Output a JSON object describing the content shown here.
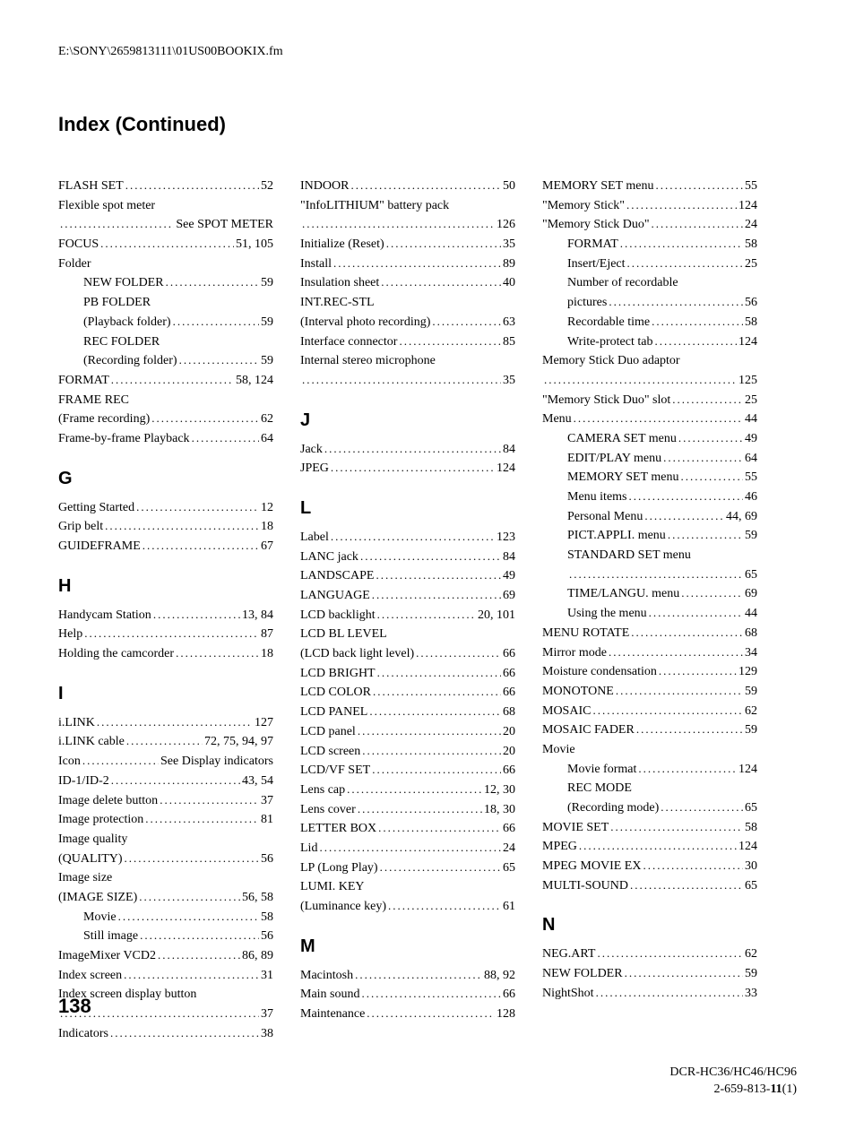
{
  "file_path": "E:\\SONY\\2659813111\\01US00BOOKIX.fm",
  "title": "Index (Continued)",
  "page_number": "138",
  "footer_line1": "DCR-HC36/HC46/HC96",
  "footer_line2_a": "2-659-813-",
  "footer_line2_b": "11",
  "footer_line2_c": "(1)",
  "columns": [
    {
      "entries": [
        {
          "t": "e",
          "label": "FLASH SET",
          "pages": "52"
        },
        {
          "t": "w",
          "line1": "Flexible spot meter",
          "label": "",
          "pages": "See SPOT METER"
        },
        {
          "t": "e",
          "label": "FOCUS",
          "pages": "51, 105"
        },
        {
          "t": "p",
          "label": "Folder"
        },
        {
          "t": "s",
          "label": "NEW FOLDER",
          "pages": "59"
        },
        {
          "t": "sw",
          "line1": "PB FOLDER",
          "label": "(Playback folder)",
          "pages": "59"
        },
        {
          "t": "sw",
          "line1": "REC FOLDER",
          "label": "(Recording folder)",
          "pages": "59"
        },
        {
          "t": "e",
          "label": "FORMAT",
          "pages": "58, 124"
        },
        {
          "t": "w",
          "line1": "FRAME REC",
          "label": "(Frame recording)",
          "pages": "62"
        },
        {
          "t": "e",
          "label": "Frame-by-frame Playback",
          "pages": "64"
        },
        {
          "t": "h",
          "label": "G"
        },
        {
          "t": "e",
          "label": "Getting Started",
          "pages": "12"
        },
        {
          "t": "e",
          "label": "Grip belt",
          "pages": "18"
        },
        {
          "t": "e",
          "label": "GUIDEFRAME",
          "pages": "67"
        },
        {
          "t": "h",
          "label": "H"
        },
        {
          "t": "e",
          "label": "Handycam Station",
          "pages": "13, 84"
        },
        {
          "t": "e",
          "label": "Help",
          "pages": "87"
        },
        {
          "t": "e",
          "label": "Holding the camcorder",
          "pages": "18"
        },
        {
          "t": "h",
          "label": "I"
        },
        {
          "t": "e",
          "label": "i.LINK",
          "pages": "127"
        },
        {
          "t": "e",
          "label": "i.LINK cable",
          "pages": "72, 75, 94, 97"
        },
        {
          "t": "e",
          "label": "Icon",
          "pages": "See Display indicators"
        },
        {
          "t": "e",
          "label": "ID-1/ID-2",
          "pages": "43, 54"
        },
        {
          "t": "e",
          "label": "Image delete button",
          "pages": "37"
        },
        {
          "t": "e",
          "label": "Image protection",
          "pages": "81"
        },
        {
          "t": "w",
          "line1": "Image quality",
          "label": "(QUALITY)",
          "pages": "56"
        },
        {
          "t": "w",
          "line1": "Image size",
          "label": "(IMAGE SIZE)",
          "pages": "56, 58"
        },
        {
          "t": "s",
          "label": "Movie",
          "pages": "58"
        },
        {
          "t": "s",
          "label": "Still image",
          "pages": "56"
        },
        {
          "t": "e",
          "label": "ImageMixer VCD2",
          "pages": "86, 89"
        },
        {
          "t": "e",
          "label": "Index screen",
          "pages": "31"
        },
        {
          "t": "w",
          "line1": "Index screen display button",
          "label": "",
          "pages": "37"
        },
        {
          "t": "e",
          "label": "Indicators",
          "pages": "38"
        }
      ]
    },
    {
      "entries": [
        {
          "t": "e",
          "label": "INDOOR",
          "pages": "50"
        },
        {
          "t": "w",
          "line1": "\"InfoLITHIUM\" battery pack",
          "label": "",
          "pages": "126"
        },
        {
          "t": "e",
          "label": "Initialize (Reset)",
          "pages": "35"
        },
        {
          "t": "e",
          "label": "Install",
          "pages": "89"
        },
        {
          "t": "e",
          "label": "Insulation sheet",
          "pages": "40"
        },
        {
          "t": "w",
          "line1": "INT.REC-STL",
          "label": "(Interval photo recording)",
          "pages": "63"
        },
        {
          "t": "e",
          "label": "Interface connector",
          "pages": "85"
        },
        {
          "t": "w",
          "line1": "Internal stereo microphone",
          "label": "",
          "pages": "35"
        },
        {
          "t": "h",
          "label": "J"
        },
        {
          "t": "e",
          "label": "Jack",
          "pages": "84"
        },
        {
          "t": "e",
          "label": "JPEG",
          "pages": "124"
        },
        {
          "t": "h",
          "label": "L"
        },
        {
          "t": "e",
          "label": "Label",
          "pages": "123"
        },
        {
          "t": "e",
          "label": "LANC jack",
          "pages": "84"
        },
        {
          "t": "e",
          "label": "LANDSCAPE",
          "pages": "49"
        },
        {
          "t": "e",
          "label": "LANGUAGE",
          "pages": "69"
        },
        {
          "t": "e",
          "label": "LCD backlight",
          "pages": "20, 101"
        },
        {
          "t": "w",
          "line1": "LCD BL LEVEL",
          "label": "(LCD back light level)",
          "pages": "66"
        },
        {
          "t": "e",
          "label": "LCD BRIGHT",
          "pages": "66"
        },
        {
          "t": "e",
          "label": "LCD COLOR",
          "pages": "66"
        },
        {
          "t": "e",
          "label": "LCD PANEL",
          "pages": "68"
        },
        {
          "t": "e",
          "label": "LCD panel",
          "pages": "20"
        },
        {
          "t": "e",
          "label": "LCD screen",
          "pages": "20"
        },
        {
          "t": "e",
          "label": "LCD/VF SET",
          "pages": "66"
        },
        {
          "t": "e",
          "label": "Lens cap",
          "pages": "12, 30"
        },
        {
          "t": "e",
          "label": "Lens cover",
          "pages": "18, 30"
        },
        {
          "t": "e",
          "label": "LETTER BOX",
          "pages": "66"
        },
        {
          "t": "e",
          "label": "Lid",
          "pages": "24"
        },
        {
          "t": "e",
          "label": "LP (Long Play)",
          "pages": "65"
        },
        {
          "t": "w",
          "line1": "LUMI. KEY",
          "label": "(Luminance key)",
          "pages": "61"
        },
        {
          "t": "h",
          "label": "M"
        },
        {
          "t": "e",
          "label": "Macintosh",
          "pages": "88, 92"
        },
        {
          "t": "e",
          "label": "Main sound",
          "pages": "66"
        },
        {
          "t": "e",
          "label": "Maintenance",
          "pages": "128"
        }
      ]
    },
    {
      "entries": [
        {
          "t": "e",
          "label": "MEMORY SET menu",
          "pages": "55"
        },
        {
          "t": "e",
          "label": "\"Memory Stick\"",
          "pages": "124"
        },
        {
          "t": "e",
          "label": "\"Memory Stick Duo\"",
          "pages": "24"
        },
        {
          "t": "s",
          "label": "FORMAT",
          "pages": "58"
        },
        {
          "t": "s",
          "label": "Insert/Eject",
          "pages": "25"
        },
        {
          "t": "sw",
          "line1": "Number of recordable",
          "label": "pictures",
          "pages": "56"
        },
        {
          "t": "s",
          "label": "Recordable time",
          "pages": "58"
        },
        {
          "t": "s",
          "label": "Write-protect tab",
          "pages": "124"
        },
        {
          "t": "w",
          "line1": "Memory Stick Duo adaptor",
          "label": "",
          "pages": "125"
        },
        {
          "t": "e",
          "label": "\"Memory Stick Duo\" slot",
          "pages": "25"
        },
        {
          "t": "e",
          "label": "Menu",
          "pages": "44"
        },
        {
          "t": "s",
          "label": "CAMERA SET menu",
          "pages": "49"
        },
        {
          "t": "s",
          "label": "EDIT/PLAY menu",
          "pages": "64"
        },
        {
          "t": "s",
          "label": "MEMORY SET menu",
          "pages": "55"
        },
        {
          "t": "s",
          "label": "Menu items",
          "pages": "46"
        },
        {
          "t": "s",
          "label": "Personal Menu",
          "pages": "44, 69"
        },
        {
          "t": "s",
          "label": "PICT.APPLI. menu",
          "pages": "59"
        },
        {
          "t": "sw",
          "line1": "STANDARD SET menu",
          "label": "",
          "pages": "65"
        },
        {
          "t": "s",
          "label": "TIME/LANGU. menu",
          "pages": "69"
        },
        {
          "t": "s",
          "label": "Using the menu",
          "pages": "44"
        },
        {
          "t": "e",
          "label": "MENU ROTATE",
          "pages": "68"
        },
        {
          "t": "e",
          "label": "Mirror mode",
          "pages": "34"
        },
        {
          "t": "e",
          "label": "Moisture condensation",
          "pages": "129"
        },
        {
          "t": "e",
          "label": "MONOTONE",
          "pages": "59"
        },
        {
          "t": "e",
          "label": "MOSAIC",
          "pages": "62"
        },
        {
          "t": "e",
          "label": "MOSAIC FADER",
          "pages": "59"
        },
        {
          "t": "p",
          "label": "Movie"
        },
        {
          "t": "s",
          "label": "Movie format",
          "pages": "124"
        },
        {
          "t": "sw",
          "line1": "REC MODE",
          "label": "(Recording mode)",
          "pages": "65"
        },
        {
          "t": "e",
          "label": "MOVIE SET",
          "pages": "58"
        },
        {
          "t": "e",
          "label": "MPEG",
          "pages": "124"
        },
        {
          "t": "e",
          "label": "MPEG MOVIE EX",
          "pages": "30"
        },
        {
          "t": "e",
          "label": "MULTI-SOUND",
          "pages": "65"
        },
        {
          "t": "h",
          "label": "N"
        },
        {
          "t": "e",
          "label": "NEG.ART",
          "pages": "62"
        },
        {
          "t": "e",
          "label": "NEW FOLDER",
          "pages": "59"
        },
        {
          "t": "e",
          "label": "NightShot",
          "pages": "33"
        }
      ]
    }
  ]
}
